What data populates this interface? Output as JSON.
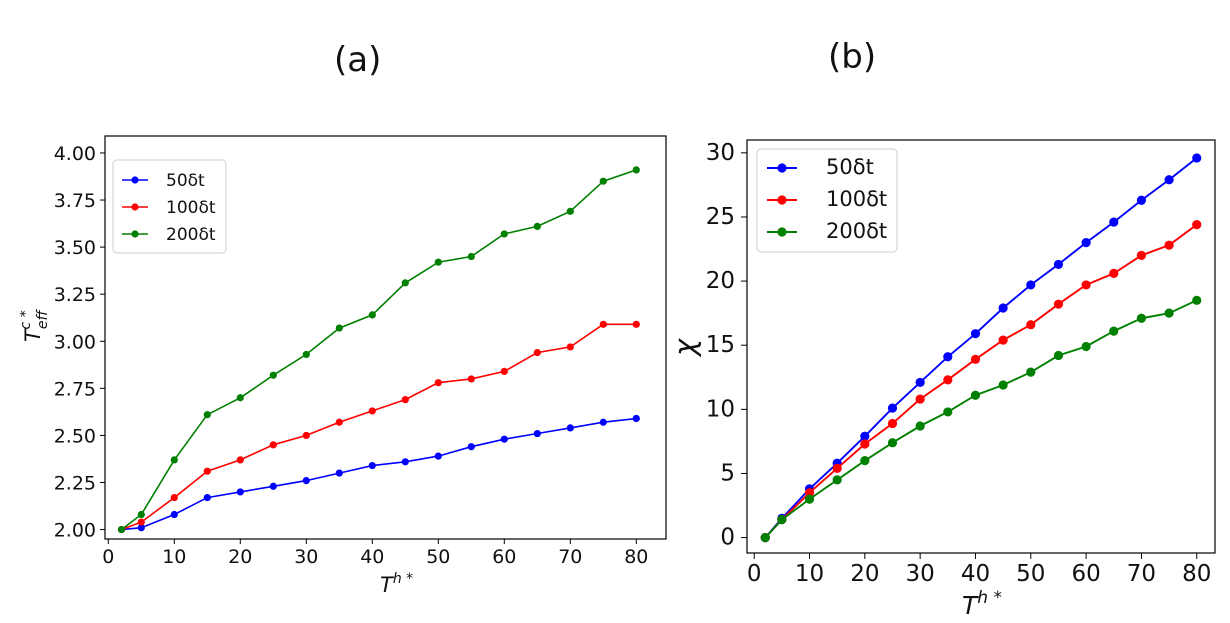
{
  "panels": {
    "a": "(a)",
    "b": "(b)"
  },
  "colors": {
    "blue": "#0000ff",
    "red": "#ff0000",
    "green": "#008000"
  },
  "chart_data": [
    {
      "type": "line",
      "title": "(a)",
      "xlabel": "T^{h*}",
      "ylabel": "T_{eff}^{c*}",
      "x": [
        2,
        5,
        10,
        15,
        20,
        25,
        30,
        35,
        40,
        45,
        50,
        55,
        60,
        65,
        70,
        75,
        80
      ],
      "xticks": [
        0,
        10,
        20,
        30,
        40,
        50,
        60,
        70,
        80
      ],
      "yticks": [
        "2.00",
        "2.25",
        "2.50",
        "2.75",
        "3.00",
        "3.25",
        "3.50",
        "3.75",
        "4.00"
      ],
      "xlim": [
        -0.5,
        84.5
      ],
      "ylim": [
        1.95,
        4.09
      ],
      "legend": "top-left",
      "series": [
        {
          "name": "50δt",
          "color": "#0000ff",
          "values": [
            2.0,
            2.01,
            2.08,
            2.17,
            2.2,
            2.23,
            2.26,
            2.3,
            2.34,
            2.36,
            2.39,
            2.44,
            2.48,
            2.51,
            2.54,
            2.57,
            2.59
          ]
        },
        {
          "name": "100δt",
          "color": "#ff0000",
          "values": [
            2.0,
            2.04,
            2.17,
            2.31,
            2.37,
            2.45,
            2.5,
            2.57,
            2.63,
            2.69,
            2.78,
            2.8,
            2.84,
            2.94,
            2.97,
            3.09,
            3.09
          ]
        },
        {
          "name": "200δt",
          "color": "#008000",
          "values": [
            2.0,
            2.08,
            2.37,
            2.61,
            2.7,
            2.82,
            2.93,
            3.07,
            3.14,
            3.31,
            3.42,
            3.45,
            3.57,
            3.61,
            3.69,
            3.85,
            3.91
          ]
        }
      ]
    },
    {
      "type": "line",
      "title": "(b)",
      "xlabel": "T^{h*}",
      "ylabel": "χ",
      "x": [
        2,
        5,
        10,
        15,
        20,
        25,
        30,
        35,
        40,
        45,
        50,
        55,
        60,
        65,
        70,
        75,
        80
      ],
      "xticks": [
        0,
        10,
        20,
        30,
        40,
        50,
        60,
        70,
        80
      ],
      "yticks": [
        "0",
        "5",
        "10",
        "15",
        "20",
        "25",
        "30"
      ],
      "xlim": [
        -1.3,
        83.3
      ],
      "ylim": [
        -1.2,
        31.0
      ],
      "legend": "top-left",
      "series": [
        {
          "name": "50δt",
          "color": "#0000ff",
          "values": [
            0.0,
            1.5,
            3.8,
            5.8,
            7.9,
            10.1,
            12.1,
            14.1,
            15.9,
            17.9,
            19.7,
            21.3,
            23.0,
            24.6,
            26.3,
            27.9,
            29.6
          ]
        },
        {
          "name": "100δt",
          "color": "#ff0000",
          "values": [
            0.0,
            1.4,
            3.5,
            5.4,
            7.3,
            8.9,
            10.8,
            12.3,
            13.9,
            15.4,
            16.6,
            18.2,
            19.7,
            20.6,
            22.0,
            22.8,
            24.4
          ]
        },
        {
          "name": "200δt",
          "color": "#008000",
          "values": [
            0.0,
            1.4,
            3.0,
            4.5,
            6.0,
            7.4,
            8.7,
            9.8,
            11.1,
            11.9,
            12.9,
            14.2,
            14.9,
            16.1,
            17.1,
            17.5,
            18.5
          ]
        }
      ]
    }
  ]
}
